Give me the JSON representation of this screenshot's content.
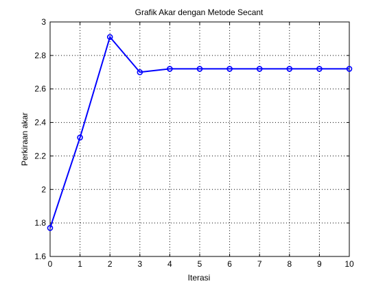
{
  "chart_data": {
    "type": "line",
    "title": "Grafik Akar dengan Metode Secant",
    "xlabel": "Iterasi",
    "ylabel": "Perkiraan akar",
    "xlim": [
      0,
      10
    ],
    "ylim": [
      1.6,
      3.0
    ],
    "xticks": [
      "0",
      "1",
      "2",
      "3",
      "4",
      "5",
      "6",
      "7",
      "8",
      "9",
      "10"
    ],
    "yticks": [
      "1.6",
      "1.8",
      "2",
      "2.2",
      "2.4",
      "2.6",
      "2.8",
      "3"
    ],
    "grid": true,
    "marker": "circle",
    "line_color": "#0000ff",
    "series": [
      {
        "x": [
          0,
          1,
          2,
          3,
          4,
          5,
          6,
          7,
          8,
          9,
          10
        ],
        "values": [
          1.77,
          2.31,
          2.91,
          2.7,
          2.72,
          2.72,
          2.72,
          2.72,
          2.72,
          2.72,
          2.72
        ]
      }
    ]
  }
}
